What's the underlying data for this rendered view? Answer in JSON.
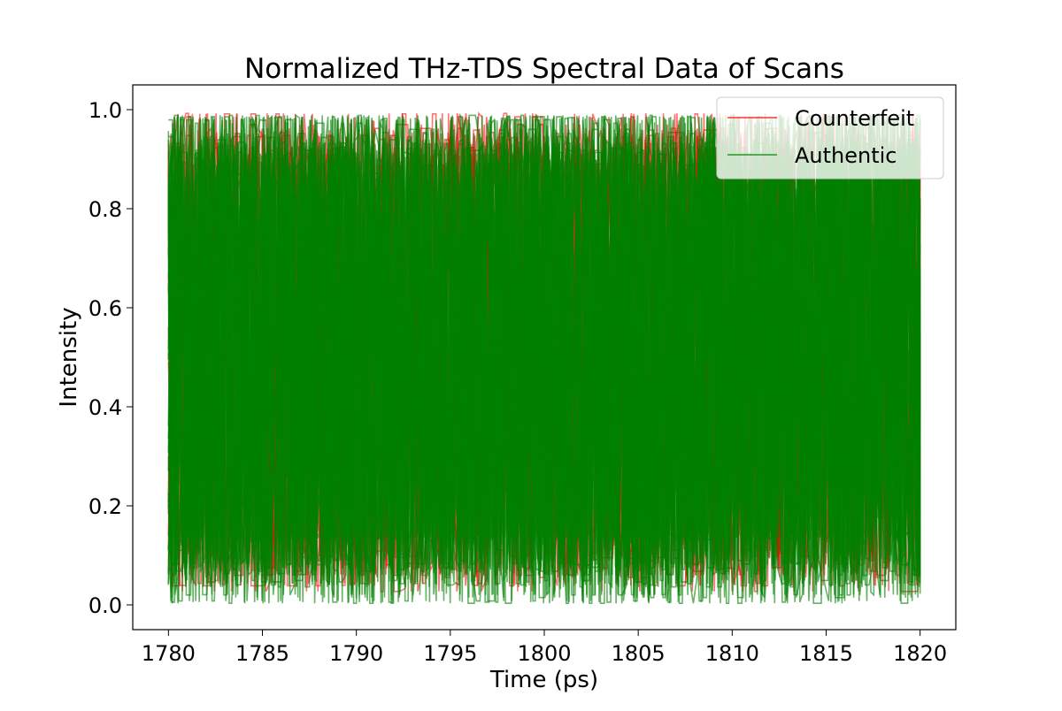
{
  "chart_data": {
    "type": "line",
    "title": "Normalized THz-TDS Spectral Data of Scans",
    "xlabel": "Time (ps)",
    "ylabel": "Intensity",
    "xlim": [
      1778.1,
      1821.9
    ],
    "ylim": [
      -0.05,
      1.05
    ],
    "x_ticks": [
      {
        "value": 1780,
        "label": "1780"
      },
      {
        "value": 1785,
        "label": "1785"
      },
      {
        "value": 1790,
        "label": "1790"
      },
      {
        "value": 1795,
        "label": "1795"
      },
      {
        "value": 1800,
        "label": "1800"
      },
      {
        "value": 1805,
        "label": "1805"
      },
      {
        "value": 1810,
        "label": "1810"
      },
      {
        "value": 1815,
        "label": "1815"
      },
      {
        "value": 1820,
        "label": "1820"
      }
    ],
    "y_ticks": [
      {
        "value": 0.0,
        "label": "0.0"
      },
      {
        "value": 0.2,
        "label": "0.2"
      },
      {
        "value": 0.4,
        "label": "0.4"
      },
      {
        "value": 0.6,
        "label": "0.6"
      },
      {
        "value": 0.8,
        "label": "0.8"
      },
      {
        "value": 1.0,
        "label": "1.0"
      }
    ],
    "grid": false,
    "legend_position": "top-right",
    "x_range": [
      1780,
      1820
    ],
    "y_range": [
      0.0,
      1.0
    ],
    "series": [
      {
        "name": "Counterfeit",
        "color": "#ff0000"
      },
      {
        "name": "Authentic",
        "color": "#008000"
      }
    ]
  }
}
